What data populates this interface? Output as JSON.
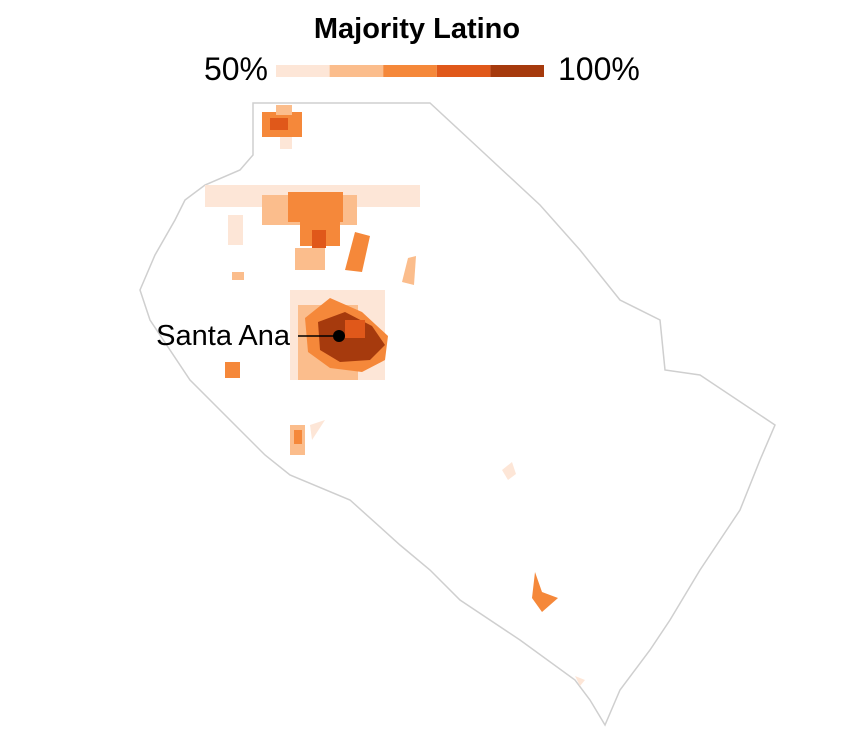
{
  "title": "Majority Latino",
  "legend": {
    "min_label": "50%",
    "max_label": "100%",
    "colors": [
      "#fde6d7",
      "#fbbd8c",
      "#f5883a",
      "#e0581a",
      "#a63a0d"
    ]
  },
  "places": [
    {
      "label": "Santa Ana"
    }
  ]
}
